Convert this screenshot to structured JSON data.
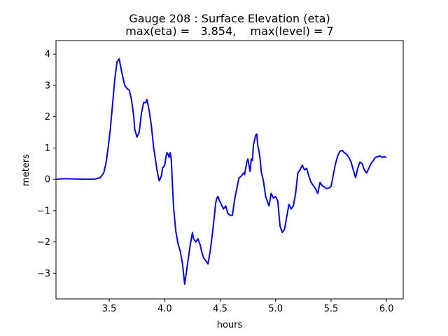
{
  "chart_data": {
    "type": "line",
    "title": "Gauge 208 : Surface Elevation (eta)",
    "subtitle": "max(eta) =   3.854,    max(level) = 7",
    "xlabel": "hours",
    "ylabel": "meters",
    "xlim": [
      3.02,
      6.15
    ],
    "ylim": [
      -3.82,
      4.43
    ],
    "xticks": [
      3.5,
      4.0,
      4.5,
      5.0,
      5.5,
      6.0
    ],
    "xtick_labels": [
      "3.5",
      "4.0",
      "4.5",
      "5.0",
      "5.5",
      "6.0"
    ],
    "yticks": [
      4,
      3,
      2,
      1,
      0,
      -1,
      -2,
      -3
    ],
    "ytick_labels": [
      "4",
      "3",
      "2",
      "1",
      "0",
      "−1",
      "−2",
      "−3"
    ],
    "grid": false,
    "series": [
      {
        "name": "eta",
        "color": "#0000ff",
        "x": [
          3.02,
          3.1,
          3.2,
          3.3,
          3.38,
          3.42,
          3.45,
          3.47,
          3.49,
          3.51,
          3.53,
          3.55,
          3.57,
          3.59,
          3.6,
          3.62,
          3.64,
          3.66,
          3.68,
          3.7,
          3.72,
          3.73,
          3.75,
          3.77,
          3.79,
          3.81,
          3.83,
          3.84,
          3.86,
          3.88,
          3.9,
          3.91,
          3.93,
          3.95,
          3.97,
          3.98,
          4.0,
          4.01,
          4.02,
          4.03,
          4.04,
          4.05,
          4.06,
          4.07,
          4.08,
          4.1,
          4.12,
          4.14,
          4.16,
          4.18,
          4.2,
          4.21,
          4.23,
          4.25,
          4.26,
          4.28,
          4.3,
          4.32,
          4.34,
          4.35,
          4.37,
          4.39,
          4.41,
          4.43,
          4.45,
          4.46,
          4.47,
          4.48,
          4.49,
          4.51,
          4.53,
          4.55,
          4.57,
          4.59,
          4.61,
          4.63,
          4.65,
          4.67,
          4.69,
          4.71,
          4.72,
          4.74,
          4.75,
          4.77,
          4.78,
          4.79,
          4.8,
          4.82,
          4.83,
          4.84,
          4.85,
          4.86,
          4.87,
          4.89,
          4.91,
          4.93,
          4.94,
          4.96,
          4.98,
          5.0,
          5.02,
          5.04,
          5.06,
          5.08,
          5.1,
          5.12,
          5.14,
          5.16,
          5.18,
          5.2,
          5.22,
          5.24,
          5.26,
          5.28,
          5.3,
          5.32,
          5.34,
          5.36,
          5.38,
          5.4,
          5.42,
          5.44,
          5.46,
          5.48,
          5.5,
          5.52,
          5.54,
          5.56,
          5.58,
          5.6,
          5.62,
          5.64,
          5.66,
          5.68,
          5.7,
          5.72,
          5.74,
          5.76,
          5.78,
          5.8,
          5.82,
          5.84,
          5.86,
          5.88,
          5.9,
          5.92,
          5.94,
          5.96,
          5.98,
          6.0
        ],
        "y": [
          0.0,
          0.02,
          0.01,
          0.0,
          0.01,
          0.06,
          0.2,
          0.5,
          1.0,
          1.6,
          2.4,
          3.2,
          3.75,
          3.85,
          3.65,
          3.3,
          3.0,
          2.9,
          2.85,
          2.55,
          2.05,
          1.6,
          1.35,
          1.5,
          2.1,
          2.45,
          2.45,
          2.55,
          2.2,
          1.7,
          1.0,
          0.8,
          0.3,
          -0.05,
          0.1,
          0.35,
          0.45,
          0.7,
          0.85,
          0.8,
          0.7,
          0.85,
          0.6,
          -0.2,
          -0.9,
          -1.65,
          -2.05,
          -2.3,
          -2.7,
          -3.35,
          -2.85,
          -2.6,
          -2.1,
          -1.7,
          -1.9,
          -2.0,
          -1.9,
          -2.1,
          -2.4,
          -2.5,
          -2.6,
          -2.7,
          -2.3,
          -1.75,
          -1.1,
          -0.75,
          -0.6,
          -0.55,
          -0.65,
          -0.8,
          -0.95,
          -0.85,
          -1.1,
          -1.15,
          -1.15,
          -0.65,
          -0.3,
          0.05,
          0.1,
          0.2,
          0.15,
          0.55,
          0.65,
          0.25,
          0.65,
          0.6,
          1.1,
          1.4,
          1.45,
          1.05,
          0.9,
          0.65,
          0.25,
          -0.05,
          -0.55,
          -0.75,
          -0.85,
          -0.45,
          -0.6,
          -0.55,
          -0.7,
          -1.5,
          -1.7,
          -1.6,
          -1.2,
          -0.8,
          -0.95,
          -0.85,
          -0.45,
          0.2,
          0.3,
          0.45,
          0.3,
          0.35,
          0.1,
          -0.1,
          -0.2,
          -0.3,
          -0.45,
          -0.1,
          -0.2,
          -0.25,
          -0.3,
          -0.28,
          -0.22,
          0.15,
          0.5,
          0.75,
          0.9,
          0.92,
          0.85,
          0.8,
          0.7,
          0.55,
          0.3,
          0.05,
          0.35,
          0.55,
          0.5,
          0.3,
          0.2,
          0.35,
          0.5,
          0.6,
          0.7,
          0.72,
          0.75,
          0.7,
          0.72,
          0.7
        ]
      }
    ]
  }
}
